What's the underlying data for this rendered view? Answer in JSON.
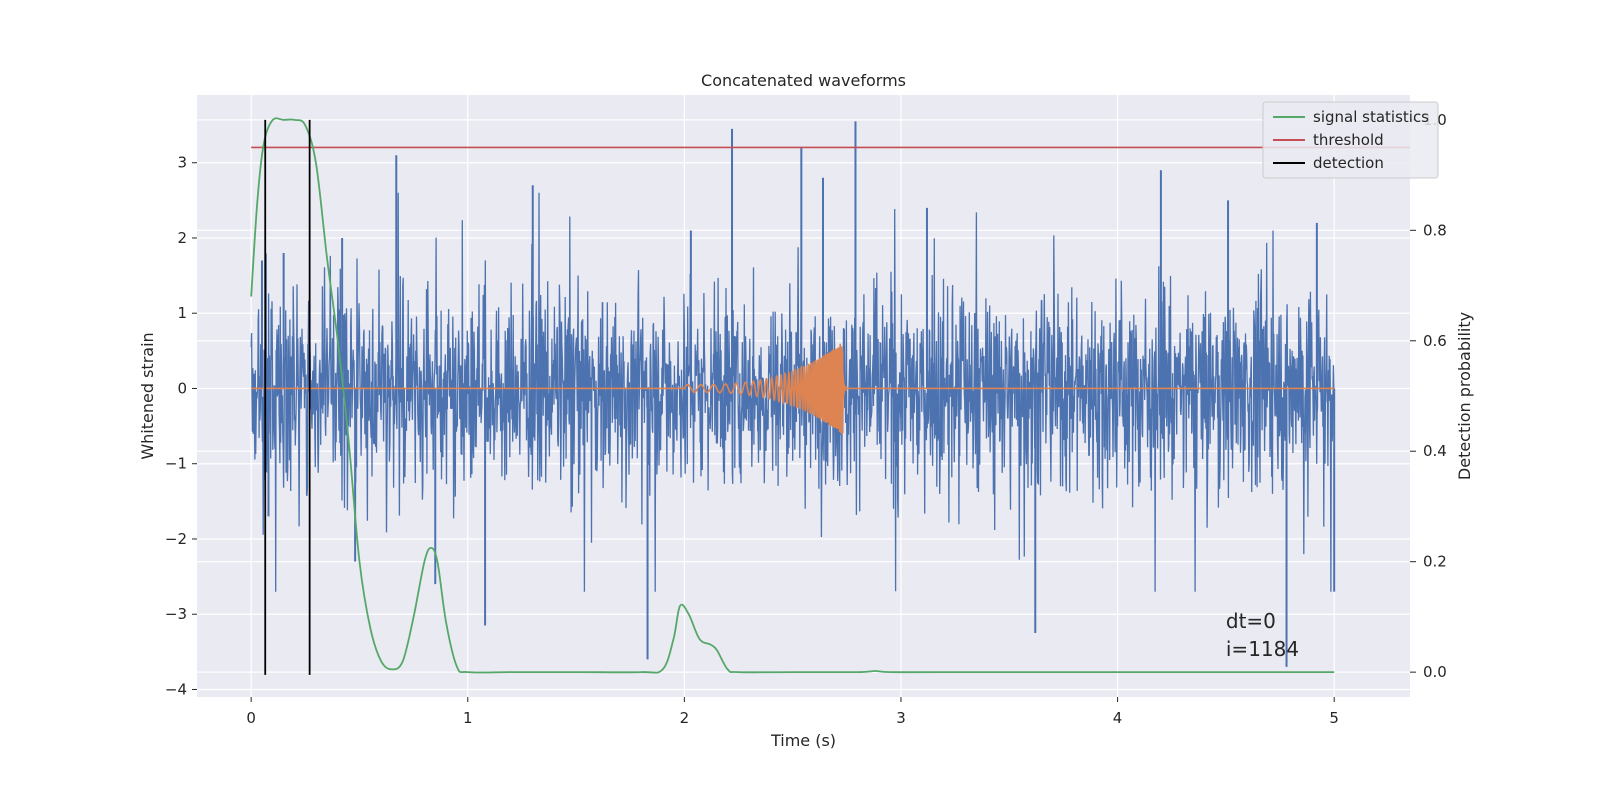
{
  "chart_data": {
    "type": "line",
    "title": "Concatenated waveforms",
    "xlabel": "Time (s)",
    "ylabel": "Whitened strain",
    "y2label": "Detection probability",
    "xlim": [
      -0.25,
      5.35
    ],
    "ylim": [
      -4.1,
      3.9
    ],
    "y2lim": [
      -0.045,
      1.045
    ],
    "xticks": [
      0,
      1,
      2,
      3,
      4,
      5
    ],
    "yticks": [
      -4,
      -3,
      -2,
      -1,
      0,
      1,
      2,
      3
    ],
    "y2ticks": [
      0.0,
      0.2,
      0.4,
      0.6,
      0.8,
      1.0
    ],
    "xtick_labels": [
      "0",
      "1",
      "2",
      "3",
      "4",
      "5"
    ],
    "ytick_labels": [
      "−4",
      "−3",
      "−2",
      "−1",
      "0",
      "1",
      "2",
      "3"
    ],
    "y2tick_labels": [
      "0.0",
      "0.2",
      "0.4",
      "0.6",
      "0.8",
      "1.0"
    ],
    "grid": true,
    "legend_position": "top-right",
    "legend": [
      {
        "label": "signal statistics",
        "color": "#55a868"
      },
      {
        "label": "threshold",
        "color": "#c44e52"
      },
      {
        "label": "detection",
        "color": "#000000"
      }
    ],
    "series": [
      {
        "name": "strain",
        "axis": "left",
        "color": "#4c72b0",
        "x_range": [
          0,
          5
        ],
        "noise_amplitude": 1.0,
        "peaks": [
          {
            "x": 0.05,
            "y": 1.7
          },
          {
            "x": 0.08,
            "y": -1.7
          },
          {
            "x": 0.15,
            "y": 1.8
          },
          {
            "x": 0.42,
            "y": 2.0
          },
          {
            "x": 0.48,
            "y": -2.3
          },
          {
            "x": 0.67,
            "y": 3.1
          },
          {
            "x": 0.85,
            "y": -2.6
          },
          {
            "x": 1.08,
            "y": -3.15
          },
          {
            "x": 1.3,
            "y": 2.7
          },
          {
            "x": 1.83,
            "y": -3.6
          },
          {
            "x": 2.03,
            "y": 2.1
          },
          {
            "x": 2.22,
            "y": 3.45
          },
          {
            "x": 2.54,
            "y": 3.2
          },
          {
            "x": 2.64,
            "y": 2.8
          },
          {
            "x": 2.79,
            "y": 3.55
          },
          {
            "x": 3.12,
            "y": 2.4
          },
          {
            "x": 3.62,
            "y": -3.25
          },
          {
            "x": 4.2,
            "y": 2.9
          },
          {
            "x": 4.51,
            "y": 2.5
          },
          {
            "x": 4.78,
            "y": -3.7
          },
          {
            "x": 4.92,
            "y": 2.2
          },
          {
            "x": 5.0,
            "y": -2.7
          }
        ]
      },
      {
        "name": "waveform",
        "axis": "left",
        "color": "#dd8452",
        "chirp_start": 2.0,
        "chirp_end": 2.73,
        "peak_amplitude": 0.62
      },
      {
        "name": "signal statistics",
        "axis": "right",
        "color": "#55a868",
        "x": [
          0,
          0.03,
          0.06,
          0.1,
          0.15,
          0.2,
          0.25,
          0.3,
          0.35,
          0.4,
          0.45,
          0.5,
          0.55,
          0.6,
          0.65,
          0.7,
          0.75,
          0.8,
          0.83,
          0.86,
          0.9,
          0.95,
          1.0,
          1.2,
          1.5,
          1.8,
          1.9,
          1.95,
          1.98,
          2.02,
          2.07,
          2.12,
          2.15,
          2.2,
          2.25,
          2.5,
          2.8,
          2.88,
          2.95,
          3.2,
          4.0,
          5.0
        ],
        "y": [
          0.68,
          0.86,
          0.96,
          1.0,
          1.0,
          1.0,
          0.99,
          0.92,
          0.75,
          0.6,
          0.42,
          0.2,
          0.08,
          0.02,
          0.005,
          0.02,
          0.1,
          0.2,
          0.225,
          0.2,
          0.09,
          0.01,
          0.0,
          0.0,
          0.0,
          0.0,
          0.005,
          0.06,
          0.12,
          0.105,
          0.06,
          0.05,
          0.04,
          0.005,
          0.0,
          0.0,
          0.0,
          0.002,
          0.0,
          0.0,
          0.0,
          0.0
        ]
      },
      {
        "name": "threshold",
        "axis": "right",
        "color": "#c44e52",
        "x": [
          0,
          5.5
        ],
        "y": [
          0.95,
          0.95
        ]
      }
    ],
    "detections": [
      0.065,
      0.27
    ],
    "detection_range": [
      -0.005,
      1.0
    ],
    "annotation_lines": [
      "dt=0",
      "i=1184"
    ]
  }
}
